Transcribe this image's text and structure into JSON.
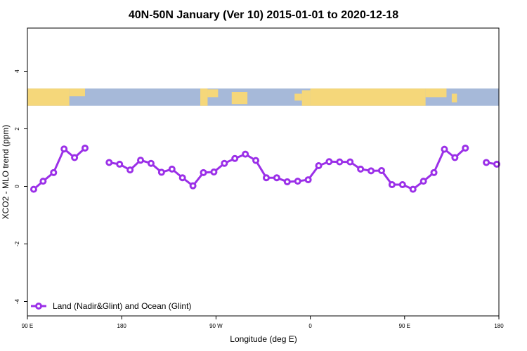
{
  "chart_data": {
    "type": "line",
    "title": "40N-50N January (Ver 10)   2015-01-01 to 2020-12-18",
    "xlabel": "Longitude (deg E)",
    "ylabel": "XCO2 - MLO trend (ppm)",
    "xlim": [
      90,
      540
    ],
    "ylim": [
      -4.5,
      5.5
    ],
    "x_ticks": [
      {
        "value": 90,
        "label": "90 E"
      },
      {
        "value": 180,
        "label": "180"
      },
      {
        "value": 270,
        "label": "90 W"
      },
      {
        "value": 360,
        "label": "0"
      },
      {
        "value": 450,
        "label": "90 E"
      },
      {
        "value": 540,
        "label": "180"
      }
    ],
    "y_ticks": [
      -4,
      -2,
      0,
      2,
      4
    ],
    "grid": false,
    "legend_position": "bottom-left",
    "map_strip": {
      "y_range": [
        2.8,
        3.4
      ],
      "land_color": "#F5D77A",
      "ocean_color": "#A6B9D9"
    },
    "series": [
      {
        "name": "Land (Nadir&Glint) and Ocean (Glint)",
        "color": "#9B30E8",
        "segments": [
          [
            [
              96,
              -0.1
            ],
            [
              105,
              0.18
            ],
            [
              115,
              0.48
            ],
            [
              125,
              1.3
            ],
            [
              135,
              1.0
            ],
            [
              145,
              1.33
            ]
          ],
          [
            [
              168,
              0.83
            ],
            [
              178,
              0.77
            ],
            [
              188,
              0.57
            ],
            [
              198,
              0.91
            ],
            [
              208,
              0.8
            ],
            [
              218,
              0.49
            ],
            [
              228,
              0.6
            ],
            [
              238,
              0.3
            ],
            [
              248,
              0.02
            ],
            [
              258,
              0.48
            ],
            [
              268,
              0.5
            ],
            [
              278,
              0.8
            ],
            [
              288,
              0.97
            ],
            [
              298,
              1.12
            ],
            [
              308,
              0.9
            ],
            [
              318,
              0.3
            ],
            [
              328,
              0.3
            ],
            [
              338,
              0.16
            ],
            [
              348,
              0.18
            ],
            [
              358,
              0.23
            ],
            [
              368,
              0.72
            ],
            [
              378,
              0.86
            ],
            [
              388,
              0.85
            ],
            [
              398,
              0.85
            ],
            [
              408,
              0.6
            ],
            [
              418,
              0.54
            ],
            [
              428,
              0.55
            ],
            [
              438,
              0.06
            ],
            [
              448,
              0.06
            ],
            [
              458,
              -0.1
            ],
            [
              468,
              0.18
            ],
            [
              478,
              0.48
            ],
            [
              488,
              1.29
            ],
            [
              498,
              1.0
            ],
            [
              508,
              1.33
            ]
          ],
          [
            [
              528,
              0.83
            ],
            [
              538,
              0.77
            ]
          ]
        ]
      }
    ]
  }
}
